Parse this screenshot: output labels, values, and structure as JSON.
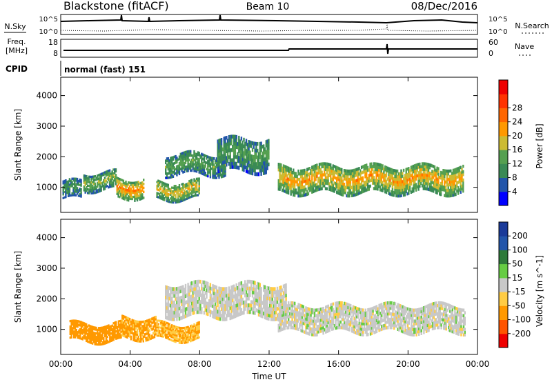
{
  "header": {
    "title": "Blackstone (fitACF)",
    "beam": "Beam 10",
    "date": "08/Dec/2016"
  },
  "top_panels": {
    "nsky_label": "N.Sky",
    "nsky_ticks": [
      "10^5",
      "10^0"
    ],
    "nsearch_label": "N.Search",
    "nsearch_ticks": [
      "10^5",
      "10^0"
    ],
    "freq_label": "Freq.",
    "freq_unit": "[MHz]",
    "freq_ticks": [
      "18",
      "8"
    ],
    "nave_label": "Nave",
    "nave_ticks": [
      "60",
      "0"
    ],
    "cpid_label": "CPID",
    "cpid_value": "normal (fast) 151"
  },
  "chart_data": [
    {
      "type": "heatmap",
      "quantity": "Power",
      "ylabel": "Slant Range [km]",
      "ytick_labels": [
        "1000",
        "2000",
        "3000",
        "4000"
      ],
      "ylim": [
        180,
        4600
      ],
      "xlim": [
        0,
        24
      ],
      "colorbar_label": "Power [dB]",
      "colorbar_ticks": [
        "4",
        "8",
        "12",
        "16",
        "20",
        "24",
        "28"
      ],
      "colorbar_colors": [
        "#0000ff",
        "#2255aa",
        "#3a8a55",
        "#55a050",
        "#ccbb33",
        "#ff9900",
        "#ff6600",
        "#ff3300",
        "#ee0000"
      ],
      "echo_bands": [
        {
          "t": [
            0.1,
            1.2
          ],
          "range": [
            600,
            1200
          ],
          "power": 10
        },
        {
          "t": [
            1.3,
            3.2
          ],
          "range": [
            900,
            1500
          ],
          "power": 14
        },
        {
          "t": [
            3.2,
            4.8
          ],
          "range": [
            650,
            1300
          ],
          "power": 22
        },
        {
          "t": [
            5.5,
            8.0
          ],
          "range": [
            600,
            1200
          ],
          "power": 18
        },
        {
          "t": [
            6.0,
            9.5
          ],
          "range": [
            1400,
            2100
          ],
          "power": 12
        },
        {
          "t": [
            9.0,
            12.0
          ],
          "range": [
            1500,
            2600
          ],
          "power": 11
        },
        {
          "t": [
            12.5,
            23.2
          ],
          "range": [
            800,
            1700
          ],
          "power": 20
        }
      ]
    },
    {
      "type": "heatmap",
      "quantity": "Velocity",
      "ylabel": "Slant Range [km]",
      "ytick_labels": [
        "1000",
        "2000",
        "3000",
        "4000"
      ],
      "ylim": [
        180,
        4600
      ],
      "xlim": [
        0,
        24
      ],
      "xticks": [
        "00:00",
        "04:00",
        "08:00",
        "12:00",
        "16:00",
        "20:00",
        "00:00"
      ],
      "xlabel": "Time UT",
      "colorbar_label": "Velocity [m s^-1]",
      "colorbar_ticks": [
        "200",
        "100",
        "50",
        "15",
        "-15",
        "-50",
        "-100",
        "-200"
      ],
      "colorbar_colors": [
        "#1a3a99",
        "#2255aa",
        "#2e7a3a",
        "#66cc44",
        "#c8c8c8",
        "#ffcc44",
        "#ff9900",
        "#ff5500",
        "#ee0000"
      ],
      "echo_bands": [
        {
          "t": [
            0.5,
            3.5
          ],
          "range": [
            600,
            1200
          ],
          "velocity": -80
        },
        {
          "t": [
            3.5,
            5.5
          ],
          "range": [
            700,
            1400
          ],
          "velocity": -60
        },
        {
          "t": [
            5.5,
            8.0
          ],
          "range": [
            650,
            1200
          ],
          "velocity": -50
        },
        {
          "t": [
            6.0,
            13.0
          ],
          "range": [
            1400,
            2500
          ],
          "velocity": 0
        },
        {
          "t": [
            12.5,
            23.3
          ],
          "range": [
            900,
            1800
          ],
          "velocity": 0
        }
      ]
    }
  ]
}
